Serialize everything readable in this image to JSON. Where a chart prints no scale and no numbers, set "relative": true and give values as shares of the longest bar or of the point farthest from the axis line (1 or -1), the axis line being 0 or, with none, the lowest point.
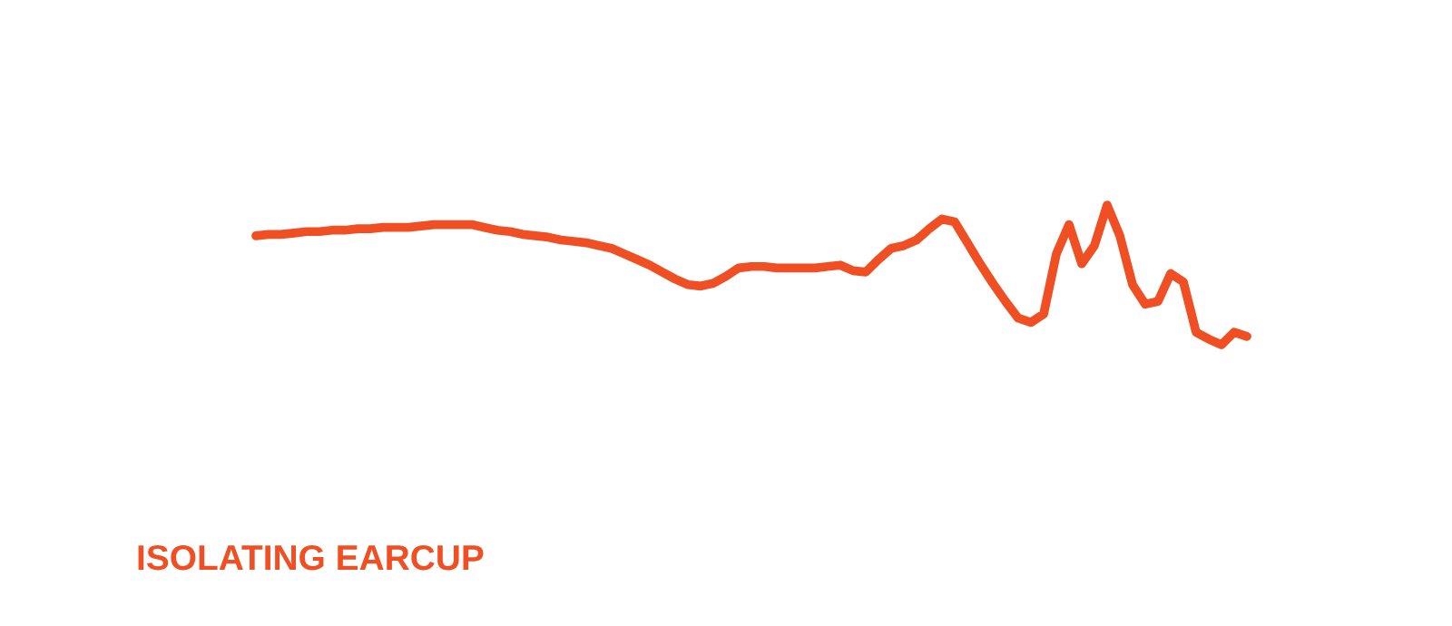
{
  "chart_data": {
    "type": "line",
    "title": "ISOLATING EARCUP",
    "relative": true,
    "categories": [
      null,
      null,
      null,
      null,
      null,
      null,
      null,
      null,
      null,
      null,
      null,
      null,
      null,
      null,
      null,
      null,
      null,
      null,
      null,
      null,
      null,
      null,
      null,
      null,
      null,
      null,
      null,
      null,
      null,
      null,
      null,
      null,
      null,
      null,
      null,
      null,
      null,
      null,
      null,
      null,
      null,
      null,
      null,
      null,
      null,
      null,
      null,
      null,
      null,
      null,
      null,
      null,
      null,
      null,
      null,
      null,
      null,
      null,
      null,
      null,
      null,
      null,
      null,
      null,
      null,
      null,
      null,
      null,
      null,
      null,
      null,
      null,
      null,
      null,
      null,
      null,
      null,
      null,
      null
    ],
    "series": [
      {
        "color": "#f04e23",
        "values": [
          0.78,
          0.79,
          0.79,
          0.8,
          0.81,
          0.81,
          0.82,
          0.82,
          0.83,
          0.83,
          0.84,
          0.84,
          0.84,
          0.85,
          0.86,
          0.86,
          0.86,
          0.86,
          0.84,
          0.82,
          0.81,
          0.79,
          0.78,
          0.77,
          0.75,
          0.74,
          0.73,
          0.71,
          0.69,
          0.65,
          0.61,
          0.57,
          0.52,
          0.47,
          0.43,
          0.42,
          0.44,
          0.49,
          0.55,
          0.56,
          0.56,
          0.55,
          0.55,
          0.55,
          0.55,
          0.56,
          0.57,
          0.53,
          0.52,
          0.61,
          0.69,
          0.71,
          0.75,
          0.83,
          0.9,
          0.88,
          0.73,
          0.58,
          0.44,
          0.31,
          0.19,
          0.16,
          0.22,
          0.65,
          0.86,
          0.58,
          0.71,
          1,
          0.78,
          0.43,
          0.29,
          0.31,
          0.51,
          0.45,
          0.09,
          0.04,
          0,
          0.09,
          0.06
        ]
      }
    ]
  }
}
